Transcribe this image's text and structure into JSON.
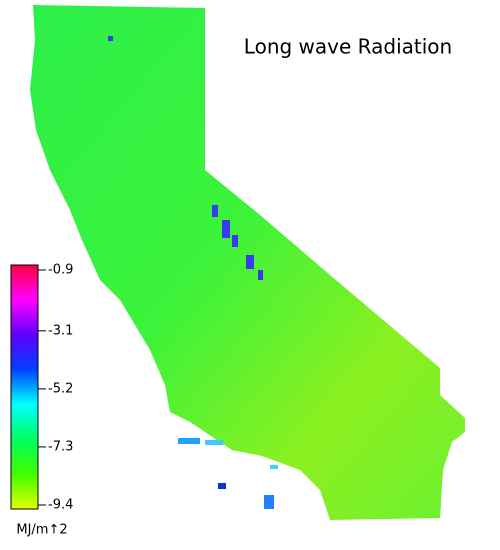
{
  "title": "Long wave Radiation",
  "colorbar": {
    "ticks": [
      -0.9,
      -3.1,
      -5.2,
      -7.3,
      -9.4
    ],
    "unit": "MJ/m↑2",
    "colors": [
      "#ff0040",
      "#ff00ff",
      "#6000ff",
      "#0040ff",
      "#00ffff",
      "#00ff60",
      "#40ff00",
      "#e0ff00"
    ]
  }
}
